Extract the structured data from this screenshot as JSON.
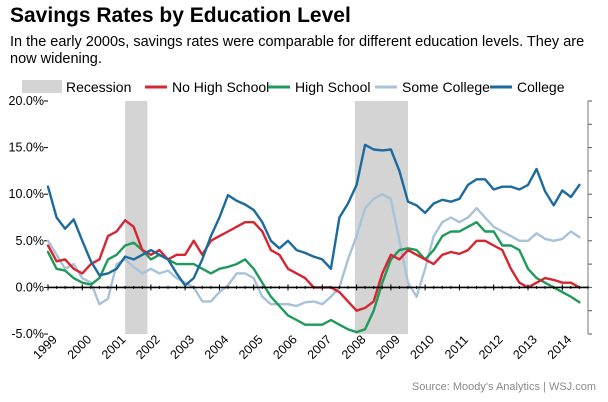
{
  "chart_data": {
    "type": "line",
    "title": "Savings Rates by Education Level",
    "subtitle": "In the early 2000s, savings rates were comparable for different education levels. They are now widening.",
    "source": "Source: Moody's Analytics  |  WSJ.com",
    "xlim": [
      1999,
      2014.75
    ],
    "ylim": [
      -5,
      20
    ],
    "x_ticks": [
      1999,
      2000,
      2001,
      2002,
      2003,
      2004,
      2005,
      2006,
      2007,
      2008,
      2009,
      2010,
      2011,
      2012,
      2013,
      2014
    ],
    "x_tick_labels": [
      "1999",
      "2000",
      "2001",
      "2002",
      "2003",
      "2004",
      "2005",
      "2006",
      "2007",
      "2008",
      "2009",
      "2010",
      "2011",
      "2012",
      "2013",
      "2014"
    ],
    "y_ticks": [
      -5,
      0,
      5,
      10,
      15,
      20
    ],
    "y_tick_labels": [
      "-5.0%",
      "0.0%",
      "5.0%",
      "10.0%",
      "15.0%",
      "20.0%"
    ],
    "grid": false,
    "recessions": [
      {
        "start": 2001.25,
        "end": 2001.9
      },
      {
        "start": 2007.95,
        "end": 2009.5
      }
    ],
    "legend": [
      {
        "name": "Recession",
        "kind": "box",
        "color": "#d4d4d4"
      },
      {
        "name": "No High School",
        "kind": "line",
        "color": "#d52731"
      },
      {
        "name": "High School",
        "kind": "line",
        "color": "#1f9a5a"
      },
      {
        "name": "Some College",
        "kind": "line",
        "color": "#a8c2da"
      },
      {
        "name": "College",
        "kind": "line",
        "color": "#1d6a9e"
      }
    ],
    "x": [
      1999,
      1999.25,
      1999.5,
      1999.75,
      2000,
      2000.25,
      2000.5,
      2000.75,
      2001,
      2001.25,
      2001.5,
      2001.75,
      2002,
      2002.25,
      2002.5,
      2002.75,
      2003,
      2003.25,
      2003.5,
      2003.75,
      2004,
      2004.25,
      2004.5,
      2004.75,
      2005,
      2005.25,
      2005.5,
      2005.75,
      2006,
      2006.25,
      2006.5,
      2006.75,
      2007,
      2007.25,
      2007.5,
      2007.75,
      2008,
      2008.25,
      2008.5,
      2008.75,
      2009,
      2009.25,
      2009.5,
      2009.75,
      2010,
      2010.25,
      2010.5,
      2010.75,
      2011,
      2011.25,
      2011.5,
      2011.75,
      2012,
      2012.25,
      2012.5,
      2012.75,
      2013,
      2013.25,
      2013.5,
      2013.75,
      2014,
      2014.25,
      2014.5
    ],
    "series": [
      {
        "name": "Some College",
        "color": "#a8c2da",
        "values": [
          5.0,
          3.5,
          2.0,
          2.5,
          1.0,
          0.5,
          -1.8,
          -1.2,
          2.5,
          3.0,
          2.2,
          1.5,
          2.0,
          1.5,
          1.8,
          1.0,
          0.5,
          0.0,
          -1.5,
          -1.5,
          -0.5,
          0.2,
          1.5,
          1.5,
          1.0,
          -1.0,
          -1.8,
          -1.8,
          -1.8,
          -2.0,
          -1.6,
          -1.5,
          -1.8,
          -1.0,
          0.0,
          3.0,
          5.5,
          8.5,
          9.5,
          10.0,
          9.5,
          5.0,
          0.5,
          -1.0,
          2.0,
          5.5,
          7.0,
          7.5,
          7.0,
          7.5,
          8.5,
          7.5,
          6.5,
          6.0,
          5.5,
          5.0,
          5.0,
          5.8,
          5.2,
          5.0,
          5.2,
          6.0,
          5.4
        ]
      },
      {
        "name": "High School",
        "color": "#1f9a5a",
        "values": [
          3.8,
          2.0,
          1.8,
          1.0,
          0.5,
          0.3,
          1.0,
          3.0,
          3.5,
          4.5,
          4.8,
          4.0,
          3.0,
          3.5,
          3.0,
          2.5,
          2.5,
          2.5,
          2.0,
          1.5,
          2.0,
          2.2,
          2.5,
          3.0,
          2.0,
          0.5,
          -1.0,
          -2.0,
          -3.0,
          -3.5,
          -4.0,
          -4.0,
          -4.0,
          -3.5,
          -4.0,
          -4.5,
          -4.8,
          -4.5,
          -2.5,
          0.5,
          3.0,
          4.0,
          4.2,
          4.0,
          3.0,
          4.0,
          5.5,
          6.0,
          6.0,
          6.5,
          7.0,
          6.0,
          6.0,
          4.5,
          4.5,
          4.0,
          2.0,
          1.0,
          0.5,
          0.0,
          -0.5,
          -1.0,
          -1.6
        ]
      },
      {
        "name": "No High School",
        "color": "#d52731",
        "values": [
          4.5,
          2.8,
          3.0,
          2.0,
          1.5,
          2.5,
          3.0,
          5.5,
          6.0,
          7.2,
          6.5,
          4.0,
          3.5,
          4.0,
          3.0,
          3.5,
          3.5,
          5.0,
          3.5,
          5.0,
          5.5,
          6.0,
          6.5,
          7.0,
          7.0,
          6.0,
          4.0,
          3.5,
          2.0,
          1.5,
          1.0,
          0.0,
          0.0,
          0.0,
          -0.5,
          -1.5,
          -2.5,
          -2.2,
          -1.5,
          1.5,
          3.5,
          3.0,
          4.0,
          3.5,
          3.0,
          2.5,
          3.5,
          3.8,
          3.6,
          4.0,
          5.0,
          5.0,
          4.5,
          4.0,
          2.0,
          0.5,
          0.0,
          0.5,
          1.0,
          0.8,
          0.5,
          0.5,
          0.0
        ]
      },
      {
        "name": "College",
        "color": "#1d6a9e",
        "values": [
          10.8,
          7.5,
          6.3,
          7.3,
          5.0,
          2.8,
          1.3,
          1.5,
          2.0,
          3.3,
          3.0,
          3.5,
          4.0,
          3.5,
          3.0,
          1.5,
          0.2,
          1.0,
          3.0,
          5.5,
          7.5,
          9.9,
          9.3,
          8.9,
          8.3,
          7.0,
          5.0,
          4.2,
          5.0,
          4.0,
          3.7,
          3.3,
          3.0,
          2.0,
          7.5,
          9.0,
          11.0,
          15.3,
          14.8,
          14.7,
          14.8,
          12.5,
          9.2,
          8.8,
          8.0,
          9.0,
          9.4,
          9.2,
          9.5,
          11.0,
          11.6,
          11.6,
          10.5,
          10.8,
          10.8,
          10.5,
          11.0,
          12.7,
          10.3,
          8.8,
          10.4,
          9.7,
          11.0
        ]
      }
    ]
  }
}
